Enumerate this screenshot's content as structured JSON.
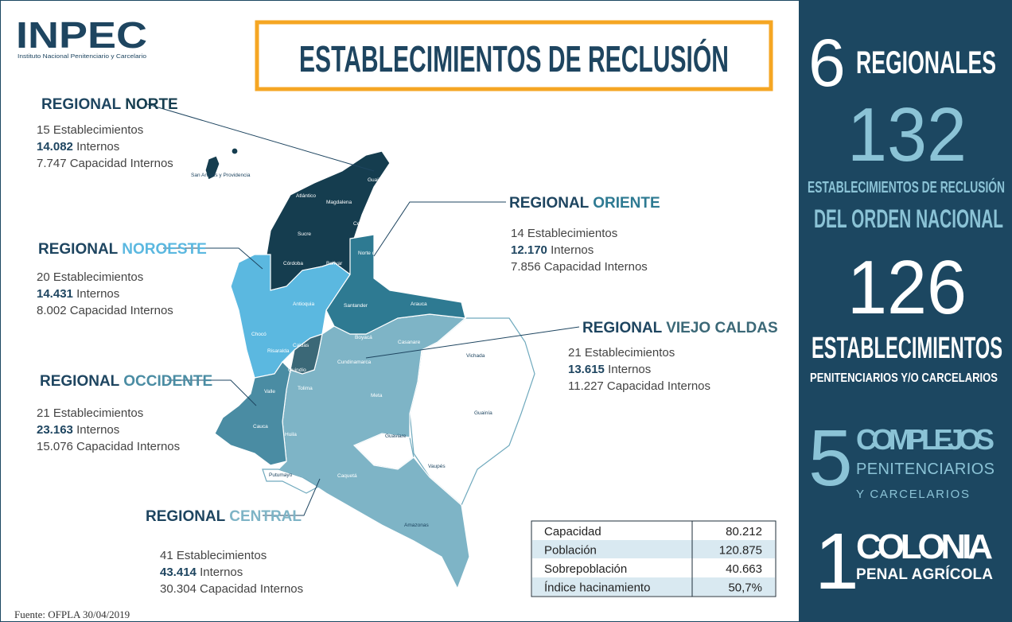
{
  "header": {
    "logo": "INPEC",
    "logo_subtitle": "Instituto Nacional Penitenciario y Carcelario",
    "title": "ESTABLECIMIENTOS DE RECLUSIÓN"
  },
  "regions": [
    {
      "prefix": "REGIONAL",
      "name": "NORTE",
      "color": "#153d4f",
      "establishments": "15 Establecimientos",
      "inmates_number": "14.082",
      "inmates_label": "Internos",
      "capacity": "7.747 Capacidad Internos"
    },
    {
      "prefix": "REGIONAL",
      "name": "NOROESTE",
      "color": "#5bb8e0",
      "establishments": "20 Establecimientos",
      "inmates_number": "14.431",
      "inmates_label": "Internos",
      "capacity": "8.002 Capacidad Internos"
    },
    {
      "prefix": "REGIONAL",
      "name": "OCCIDENTE",
      "color": "#4a8ca3",
      "establishments": "21 Establecimientos",
      "inmates_number": "23.163",
      "inmates_label": "Internos",
      "capacity": "15.076 Capacidad Internos"
    },
    {
      "prefix": "REGIONAL",
      "name": "CENTRAL",
      "color": "#7eb4c6",
      "establishments": "41 Establecimientos",
      "inmates_number": "43.414",
      "inmates_label": "Internos",
      "capacity": "30.304 Capacidad Internos"
    },
    {
      "prefix": "REGIONAL",
      "name": "ORIENTE",
      "color": "#2e7a92",
      "establishments": "14 Establecimientos",
      "inmates_number": "12.170",
      "inmates_label": "Internos",
      "capacity": "7.856 Capacidad Internos"
    },
    {
      "prefix": "REGIONAL",
      "name": "VIEJO CALDAS",
      "color": "#3b6877",
      "establishments": "21 Establecimientos",
      "inmates_number": "13.615",
      "inmates_label": "Internos",
      "capacity": "11.227 Capacidad Internos"
    }
  ],
  "map_labels": [
    "San Andrés y Providencia",
    "Guajira",
    "Atlántico",
    "Magdalena",
    "Cesar",
    "Sucre",
    "Córdoba",
    "Bolívar",
    "Norte de Santander",
    "Antioquia",
    "Santander",
    "Arauca",
    "Chocó",
    "Boyacá",
    "Casanare",
    "Caldas",
    "Risaralda",
    "Cundinamarca",
    "Quindío",
    "Tolima",
    "Vichada",
    "Valle",
    "Meta",
    "Guainía",
    "Cauca",
    "Huila",
    "Guaviare",
    "Nariño",
    "Vaupés",
    "Putumayo",
    "Caquetá",
    "Amazonas"
  ],
  "table": {
    "rows": [
      [
        "Capacidad",
        "80.212"
      ],
      [
        "Población",
        "120.875"
      ],
      [
        "Sobrepoblación",
        "40.663"
      ],
      [
        "Índice hacinamiento",
        "50,7%"
      ]
    ]
  },
  "sidebar": {
    "regionales_number": "6",
    "regionales_label": "REGIONALES",
    "total_number": "132",
    "total_line1": "ESTABLECIMIENTOS DE RECLUSIÓN",
    "total_line2": "DEL ORDEN NACIONAL",
    "penit_number": "126",
    "penit_line1": "ESTABLECIMIENTOS",
    "penit_line2": "PENITENCIARIOS Y/O CARCELARIOS",
    "complex_number": "5",
    "complex_line1": "COMPLEJOS",
    "complex_line2": "PENITENCIARIOS",
    "complex_line3": "Y CARCELARIOS",
    "colony_number": "1",
    "colony_line1": "COLONIA",
    "colony_line2": "PENAL AGRÍCOLA"
  },
  "source": "Fuente: OFPLA 30/04/2019"
}
